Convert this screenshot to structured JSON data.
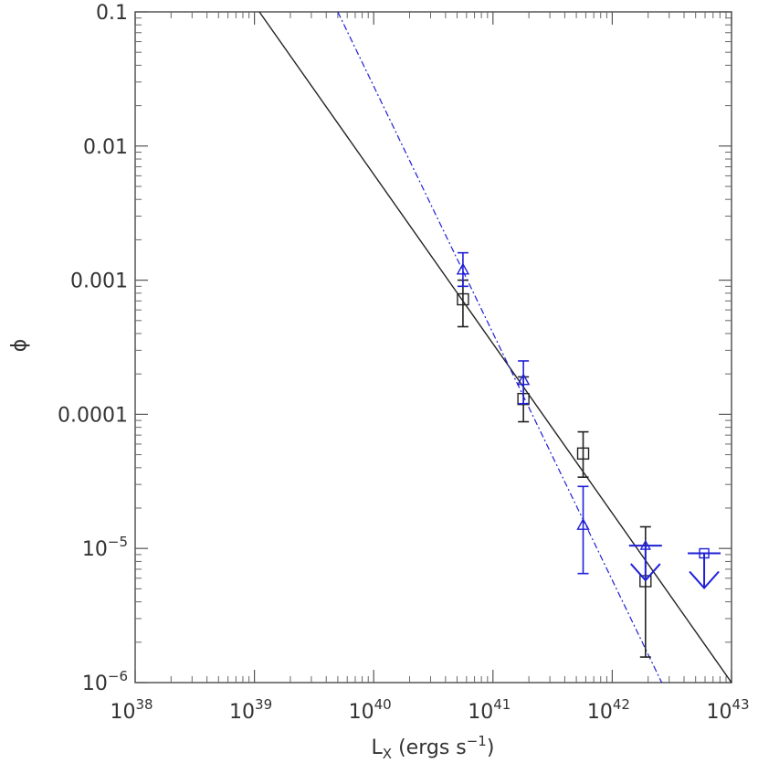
{
  "chart_data": {
    "type": "scatter",
    "title": "",
    "xlabel": {
      "base": "L",
      "sub": "X",
      "rest": " (ergs s",
      "sup": "−1",
      "close": ")"
    },
    "ylabel": "ϕ",
    "xscale": "log",
    "yscale": "log",
    "xlim": [
      1e+38,
      1e+43
    ],
    "ylim": [
      1e-06,
      0.1
    ],
    "grid": false,
    "x_ticks": [
      {
        "value": 1e+38,
        "base": "10",
        "exp": "38"
      },
      {
        "value": 1e+39,
        "base": "10",
        "exp": "39"
      },
      {
        "value": 1e+40,
        "base": "10",
        "exp": "40"
      },
      {
        "value": 1e+41,
        "base": "10",
        "exp": "41"
      },
      {
        "value": 1e+42,
        "base": "10",
        "exp": "42"
      },
      {
        "value": 1e+43,
        "base": "10",
        "exp": "43"
      }
    ],
    "y_ticks": [
      {
        "value": 1e-06,
        "base": "10",
        "exp": "−6"
      },
      {
        "value": 1e-05,
        "base": "10",
        "exp": "−5"
      },
      {
        "value": 0.0001,
        "text": "0.0001"
      },
      {
        "value": 0.001,
        "text": "0.001"
      },
      {
        "value": 0.01,
        "text": "0.01"
      },
      {
        "value": 0.1,
        "text": "0.1"
      }
    ],
    "series": [
      {
        "marker": "square",
        "color": "#222222",
        "points": [
          {
            "x": 5.6e+40,
            "y": 0.00072,
            "ylo": 0.00045,
            "yhi": 0.001
          },
          {
            "x": 1.8e+41,
            "y": 0.00013,
            "ylo": 8.8e-05,
            "yhi": 0.00019
          },
          {
            "x": 5.7e+41,
            "y": 5.1e-05,
            "ylo": 3.4e-05,
            "yhi": 7.4e-05
          },
          {
            "x": 1.9e+42,
            "y": 5.7e-06,
            "ylo": 1.55e-06,
            "yhi": 1.45e-05
          }
        ]
      },
      {
        "marker": "triangle",
        "color": "#1f1fd6",
        "points": [
          {
            "x": 5.6e+40,
            "y": 0.0012,
            "ylo": 0.0009,
            "yhi": 0.0016
          },
          {
            "x": 1.8e+41,
            "y": 0.00018,
            "ylo": 0.00012,
            "yhi": 0.00025
          },
          {
            "x": 5.7e+41,
            "y": 1.5e-05,
            "ylo": 6.5e-06,
            "yhi": 2.9e-05
          }
        ]
      },
      {
        "marker": "upper-limit",
        "color": "#1f1fd6",
        "points": [
          {
            "x": 1.9e+42,
            "y": 1.05e-05,
            "marker_inside": "triangle"
          },
          {
            "x": 5.9e+42,
            "y": 9.2e-06,
            "marker_inside": "square"
          }
        ]
      }
    ],
    "fits": [
      {
        "style": "solid",
        "color": "#222222",
        "x": [
          1.1e+39,
          1e+43
        ],
        "y": [
          0.1,
          1e-06
        ]
      },
      {
        "style": "dash-dot",
        "color": "#1f1fd6",
        "x": [
          5e+39,
          2.6e+42
        ],
        "y": [
          0.1,
          1e-06
        ]
      }
    ]
  }
}
